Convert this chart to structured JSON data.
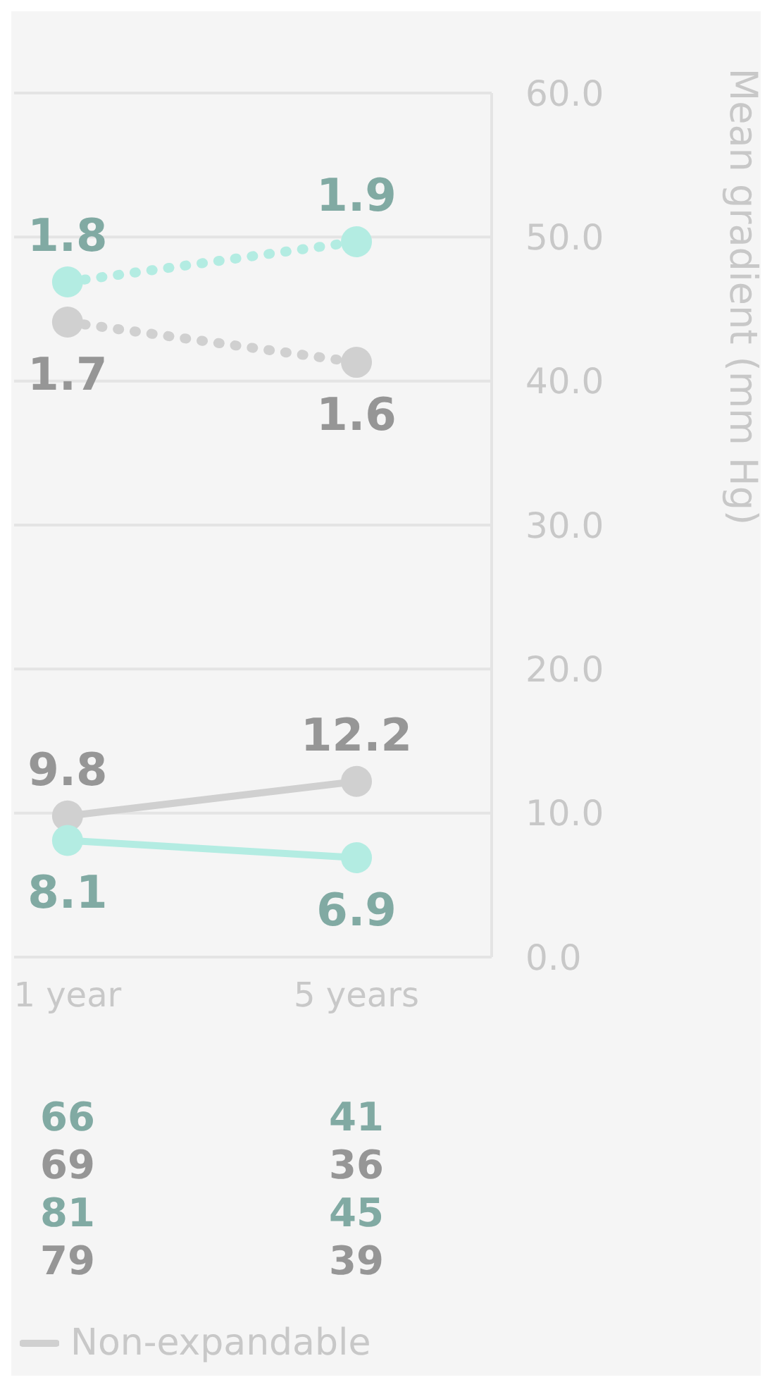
{
  "chart_data": {
    "type": "line",
    "ylabel": "Mean gradient (mm Hg)",
    "categories": [
      "1 year",
      "5 years"
    ],
    "ylim": [
      0,
      60
    ],
    "yticks": [
      {
        "value": 0,
        "label": "0.0"
      },
      {
        "value": 10,
        "label": "10.0"
      },
      {
        "value": 20,
        "label": "20.0"
      },
      {
        "value": 30,
        "label": "30.0"
      },
      {
        "value": 40,
        "label": "40.0"
      },
      {
        "value": 50,
        "label": "50.0"
      },
      {
        "value": 60,
        "label": "60.0"
      }
    ],
    "y2lim": [
      0.12,
      2.27
    ],
    "grid": "y",
    "marker": "circle",
    "data_labels": true,
    "legend": "bottom",
    "series": [
      {
        "color": "#b3ece2",
        "values": [
          1.8,
          1.9
        ],
        "axis": "y2",
        "line_style": "dotted"
      },
      {
        "color": "#d0d0d0",
        "values": [
          1.7,
          1.6
        ],
        "axis": "y2",
        "line_style": "dotted"
      },
      {
        "name": "Non-expandable",
        "color": "#d0d0d0",
        "values": [
          9.8,
          12.2
        ],
        "line_style": "solid"
      },
      {
        "color": "#b3ece2",
        "values": [
          8.1,
          6.9
        ],
        "line_style": "solid"
      }
    ],
    "annotations": [
      "66",
      "69",
      "81",
      "79",
      "41",
      "36",
      "45",
      "39"
    ]
  }
}
